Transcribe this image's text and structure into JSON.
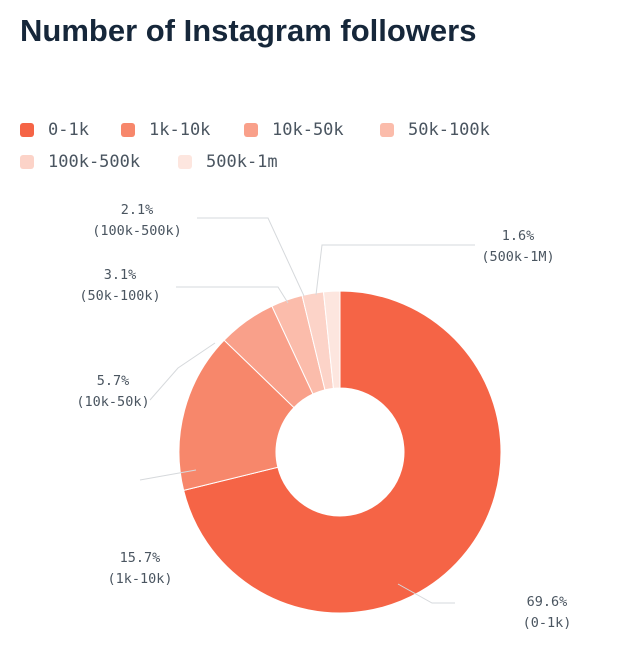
{
  "chart_data": {
    "type": "pie",
    "donut": true,
    "title": "Number of Instagram followers",
    "legend_position": "top-left",
    "slices": [
      {
        "name": "0-1k",
        "value": 69.6,
        "pct_label": "69.6%",
        "cat_label": "(0-1k)",
        "color": "#f56446"
      },
      {
        "name": "1k-10k",
        "value": 15.7,
        "pct_label": "15.7%",
        "cat_label": "(1k-10k)",
        "color": "#f7876b"
      },
      {
        "name": "10k-50k",
        "value": 5.7,
        "pct_label": "5.7%",
        "cat_label": "(10k-50k)",
        "color": "#f9a08a"
      },
      {
        "name": "50k-100k",
        "value": 3.1,
        "pct_label": "3.1%",
        "cat_label": "(50k-100k)",
        "color": "#fbbcab"
      },
      {
        "name": "100k-500k",
        "value": 2.1,
        "pct_label": "2.1%",
        "cat_label": "(100k-500k)",
        "color": "#fcd3c8"
      },
      {
        "name": "500k-1m",
        "value": 1.6,
        "pct_label": "1.6%",
        "cat_label": "(500k-1M)",
        "color": "#fde6df"
      }
    ]
  }
}
